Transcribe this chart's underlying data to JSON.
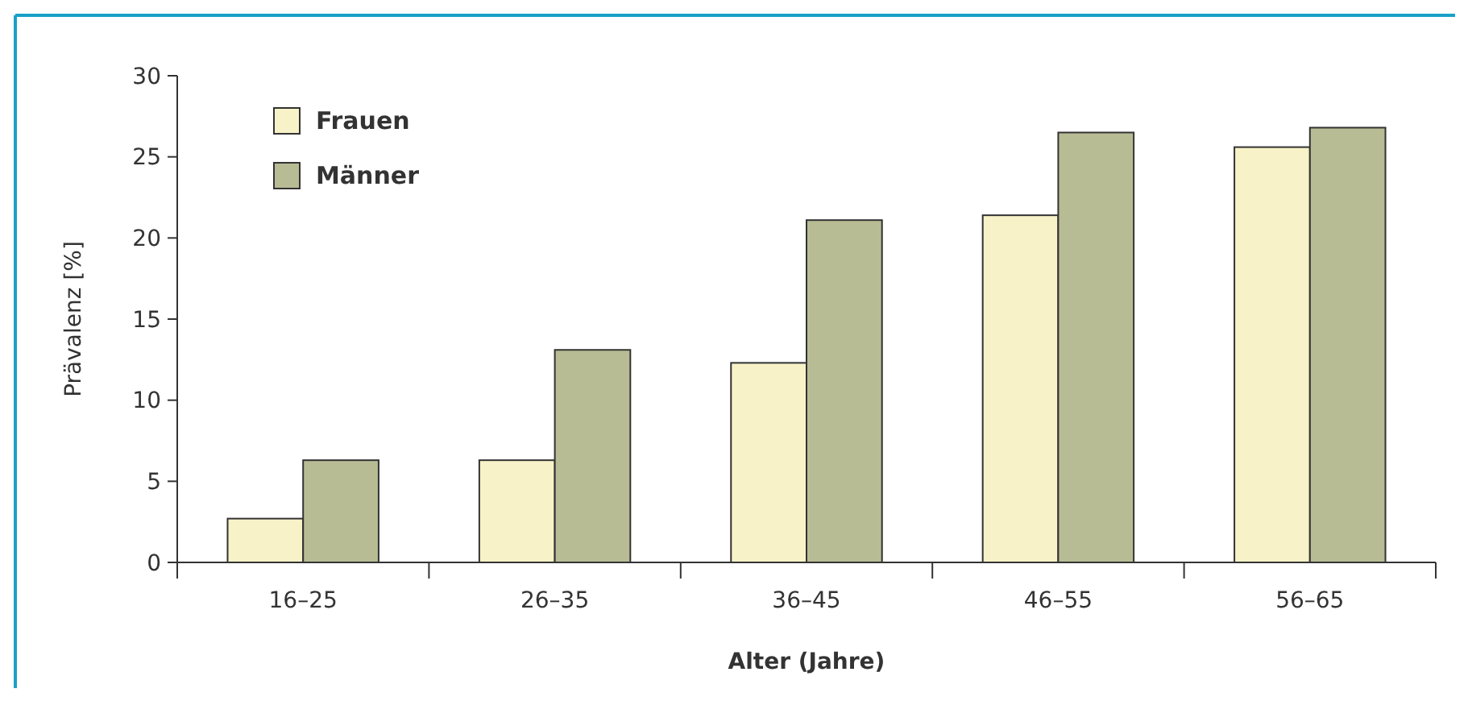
{
  "chart_data": {
    "type": "bar",
    "xlabel": "Alter (Jahre)",
    "ylabel": "Prävalenz [%]",
    "categories": [
      "16–25",
      "26–35",
      "36–45",
      "46–55",
      "56–65"
    ],
    "series": [
      {
        "name": "Frauen",
        "color": "#f8f2c8",
        "values": [
          2.7,
          6.3,
          12.3,
          21.4,
          25.6
        ]
      },
      {
        "name": "Männer",
        "color": "#b8bc94",
        "values": [
          6.3,
          13.1,
          21.1,
          26.5,
          26.8
        ]
      }
    ],
    "ylim": [
      0,
      30
    ],
    "yticks": [
      0,
      5,
      10,
      15,
      20,
      25,
      30
    ],
    "grid": false,
    "legend": "top left"
  }
}
